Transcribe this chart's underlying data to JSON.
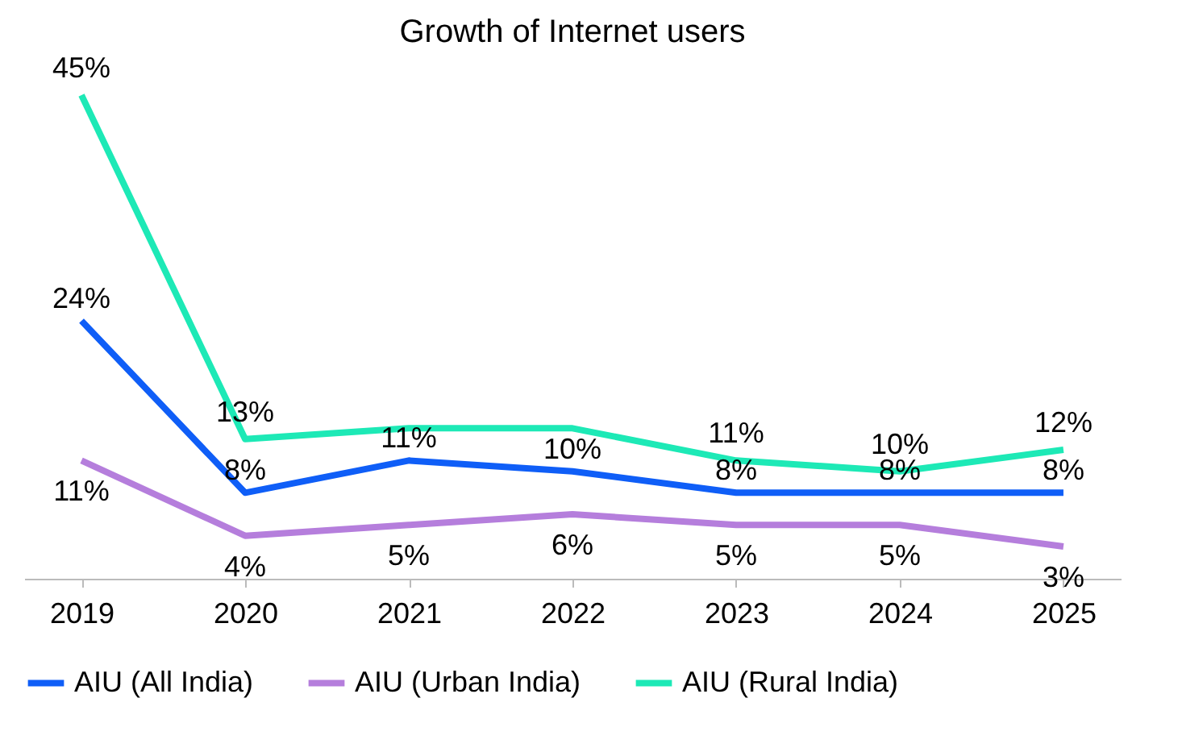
{
  "chart_data": {
    "type": "line",
    "title": "Growth of Internet users",
    "categories": [
      "2019",
      "2020",
      "2021",
      "2022",
      "2023",
      "2024",
      "2025"
    ],
    "tick_labels": "x",
    "legend": "bottom",
    "marker": "none",
    "line_style": "solid",
    "series": [
      {
        "name": "AIU (All India)",
        "color": "#0f5ef7",
        "values": [
          24,
          8,
          11,
          10,
          8,
          8,
          8
        ],
        "value_labels": [
          "24%",
          "8%",
          "11%",
          "10%",
          "8%",
          "8%",
          "8%"
        ]
      },
      {
        "name": "AIU (Urban India)",
        "color": "#b57edc",
        "values": [
          11,
          4,
          5,
          6,
          5,
          5,
          3
        ],
        "value_labels": [
          "11%",
          "4%",
          "5%",
          "6%",
          "5%",
          "5%",
          "3%"
        ]
      },
      {
        "name": "AIU (Rural India)",
        "color": "#1de9b6",
        "values": [
          45,
          13,
          14,
          14,
          11,
          10,
          12
        ],
        "value_labels": [
          "45%",
          "13%",
          null,
          null,
          "11%",
          "10%",
          "12%"
        ]
      }
    ]
  }
}
